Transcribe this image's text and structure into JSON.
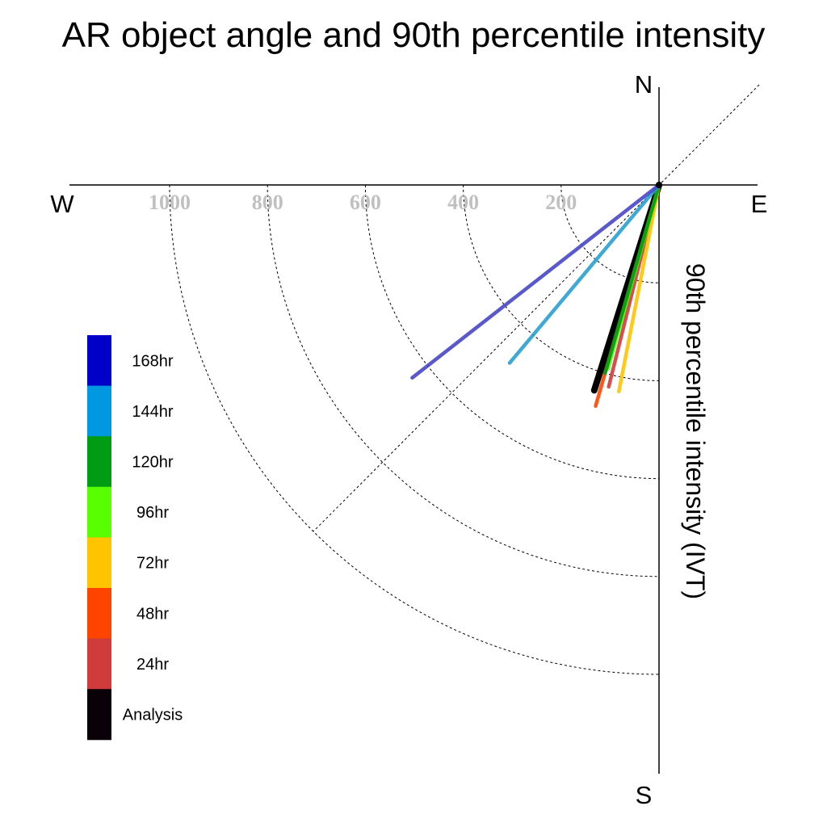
{
  "chart_data": {
    "type": "polar-vector",
    "title": "AR object angle and 90th percentile intensity",
    "axis_label": "90th percentile intensity (IVT)",
    "compass": {
      "north": "N",
      "south": "S",
      "east": "E",
      "west": "W"
    },
    "radial_ticks": [
      200,
      400,
      600,
      800,
      1000
    ],
    "radial_max": 1000,
    "grid": true,
    "legend_placement": "left",
    "series": [
      {
        "name": "168hr",
        "color": "#0000c8",
        "line_color": "#4848c8",
        "intensity": 640,
        "bearing": 232
      },
      {
        "name": "144hr",
        "color": "#0098e0",
        "line_color": "#2aa0d0",
        "intensity": 475,
        "bearing": 220
      },
      {
        "name": "120hr",
        "color": "#009c14",
        "line_color": "#009c14",
        "intensity": 400,
        "bearing": 196
      },
      {
        "name": "96hr",
        "color": "#58ff00",
        "line_color": "#58ff00",
        "intensity": 390,
        "bearing": 195.5
      },
      {
        "name": "72hr",
        "color": "#ffc400",
        "line_color": "#ffc400",
        "intensity": 430,
        "bearing": 191
      },
      {
        "name": "48hr",
        "color": "#ff4400",
        "line_color": "#ff4400",
        "intensity": 470,
        "bearing": 196
      },
      {
        "name": "24hr",
        "color": "#d03c3c",
        "line_color": "#d03c3c",
        "intensity": 425,
        "bearing": 194
      },
      {
        "name": "Analysis",
        "color": "#0a0008",
        "line_color": "#000000",
        "intensity": 440,
        "bearing": 197.5
      }
    ]
  }
}
